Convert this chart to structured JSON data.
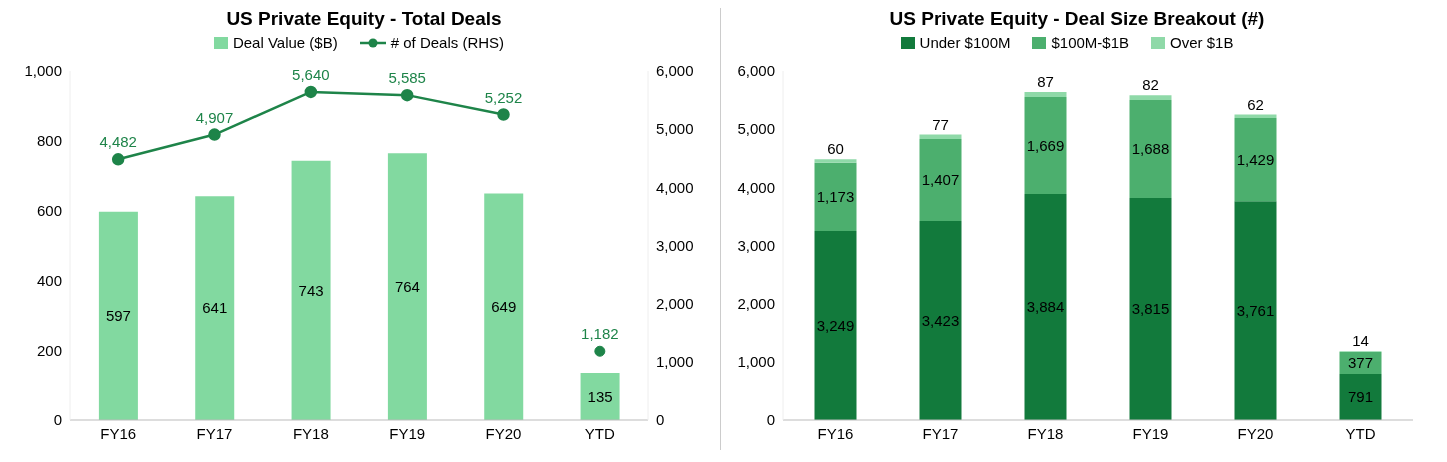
{
  "chart_data": [
    {
      "type": "bar",
      "title": "US Private Equity - Total Deals",
      "categories": [
        "FY16",
        "FY17",
        "FY18",
        "FY19",
        "FY20",
        "YTD"
      ],
      "series": [
        {
          "name": "Deal Value ($B)",
          "color": "#82d9a0",
          "values": [
            597,
            641,
            743,
            764,
            649,
            135
          ],
          "value_labels": [
            "597",
            "641",
            "743",
            "764",
            "649",
            "135"
          ]
        },
        {
          "name": "# of Deals (RHS)",
          "type": "line",
          "axis": "y2",
          "color": "#1e8449",
          "values": [
            4482,
            4907,
            5640,
            5585,
            5252,
            null
          ],
          "value_labels": [
            "4,482",
            "4,907",
            "5,640",
            "5,585",
            "5,252",
            null
          ]
        },
        {
          "type": "scatter",
          "axis": "y2",
          "color": "#1e8449",
          "values": [
            null,
            null,
            null,
            null,
            null,
            1182
          ],
          "value_labels": [
            null,
            null,
            null,
            null,
            null,
            "1,182"
          ]
        }
      ],
      "ylim": [
        0,
        1000
      ],
      "yticks": [
        0,
        200,
        400,
        600,
        800,
        {
          "value": 1000,
          "label": "1,000"
        }
      ],
      "y2lim": [
        0,
        6000
      ],
      "y2ticks": [
        0,
        {
          "value": 1000,
          "label": "1,000"
        },
        {
          "value": 2000,
          "label": "2,000"
        },
        {
          "value": 3000,
          "label": "3,000"
        },
        {
          "value": 4000,
          "label": "4,000"
        },
        {
          "value": 5000,
          "label": "5,000"
        },
        {
          "value": 6000,
          "label": "6,000"
        }
      ],
      "marker": "circle",
      "legend": "top",
      "grid": false
    },
    {
      "type": "bar",
      "title": "US Private Equity - Deal Size Breakout (#)",
      "categories": [
        "FY16",
        "FY17",
        "FY18",
        "FY19",
        "FY20",
        "YTD"
      ],
      "stacked": true,
      "series": [
        {
          "name": "Under $100M",
          "color": "#127a3c",
          "values": [
            3249,
            3423,
            3884,
            3815,
            3761,
            791
          ],
          "value_labels": [
            "3,249",
            "3,423",
            "3,884",
            "3,815",
            "3,761",
            "791"
          ]
        },
        {
          "name": "$100M-$1B",
          "color": "#4caf6e",
          "values": [
            1173,
            1407,
            1669,
            1688,
            1429,
            377
          ],
          "value_labels": [
            "1,173",
            "1,407",
            "1,669",
            "1,688",
            "1,429",
            "377"
          ]
        },
        {
          "name": "Over $1B",
          "color": "#8fd9a8",
          "values": [
            60,
            77,
            87,
            82,
            62,
            14
          ],
          "value_labels": [
            "60",
            "77",
            "87",
            "82",
            "62",
            "14"
          ]
        }
      ],
      "ylim": [
        0,
        6000
      ],
      "yticks": [
        0,
        {
          "value": 1000,
          "label": "1,000"
        },
        {
          "value": 2000,
          "label": "2,000"
        },
        {
          "value": 3000,
          "label": "3,000"
        },
        {
          "value": 4000,
          "label": "4,000"
        },
        {
          "value": 5000,
          "label": "5,000"
        },
        {
          "value": 6000,
          "label": "6,000"
        }
      ],
      "legend": "top",
      "grid": false
    }
  ]
}
